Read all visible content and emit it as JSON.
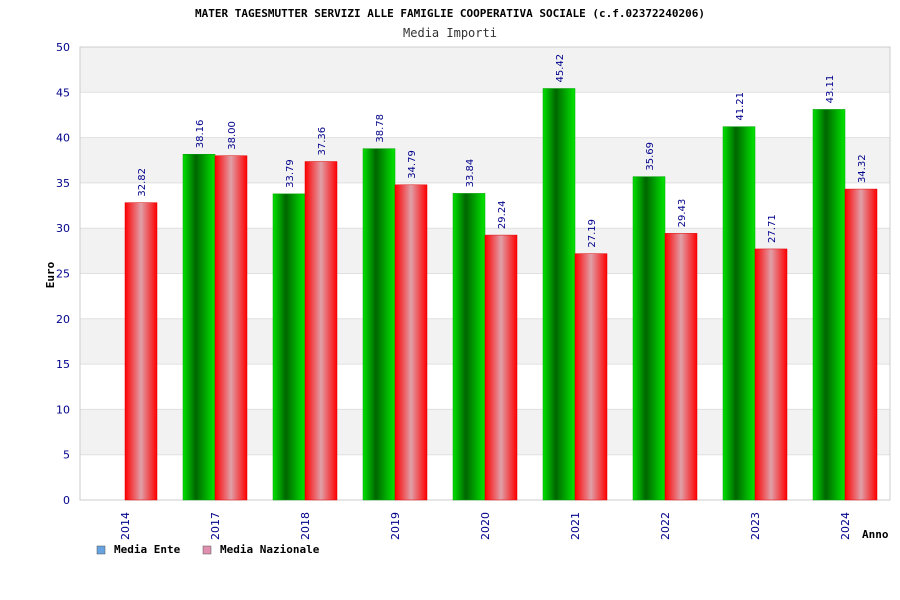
{
  "chart_data": {
    "type": "bar",
    "title": "MATER TAGESMUTTER SERVIZI ALLE FAMIGLIE COOPERATIVA SOCIALE (c.f.02372240206)",
    "subtitle": "Media Importi",
    "xlabel": "Anno",
    "ylabel": "Euro",
    "ylim": [
      0,
      50
    ],
    "yticks": [
      "0",
      "5",
      "10",
      "15",
      "20",
      "25",
      "30",
      "35",
      "40",
      "45",
      "50"
    ],
    "categories": [
      "2014",
      "2017",
      "2018",
      "2019",
      "2020",
      "2021",
      "2022",
      "2023",
      "2024"
    ],
    "series": [
      {
        "name": "Media Ente",
        "values": [
          null,
          38.16,
          33.79,
          38.78,
          33.84,
          45.42,
          35.69,
          41.21,
          43.11
        ],
        "labels": [
          "",
          "38.16",
          "33.79",
          "38.78",
          "33.84",
          "45.42",
          "35.69",
          "41.21",
          "43.11"
        ],
        "color": "#00cc00"
      },
      {
        "name": "Media Nazionale",
        "values": [
          32.82,
          38.0,
          37.36,
          34.79,
          29.24,
          27.19,
          29.43,
          27.71,
          34.32
        ],
        "labels": [
          "32.82",
          "38.00",
          "37.36",
          "34.79",
          "29.24",
          "27.19",
          "29.43",
          "27.71",
          "34.32"
        ],
        "color": "#ff0000"
      }
    ],
    "legend": {
      "position": "bottom-left",
      "items": [
        {
          "name": "Media Ente",
          "color": "#66a3e0"
        },
        {
          "name": "Media Nazionale",
          "color": "#e08fb0"
        }
      ]
    },
    "grid": true
  }
}
